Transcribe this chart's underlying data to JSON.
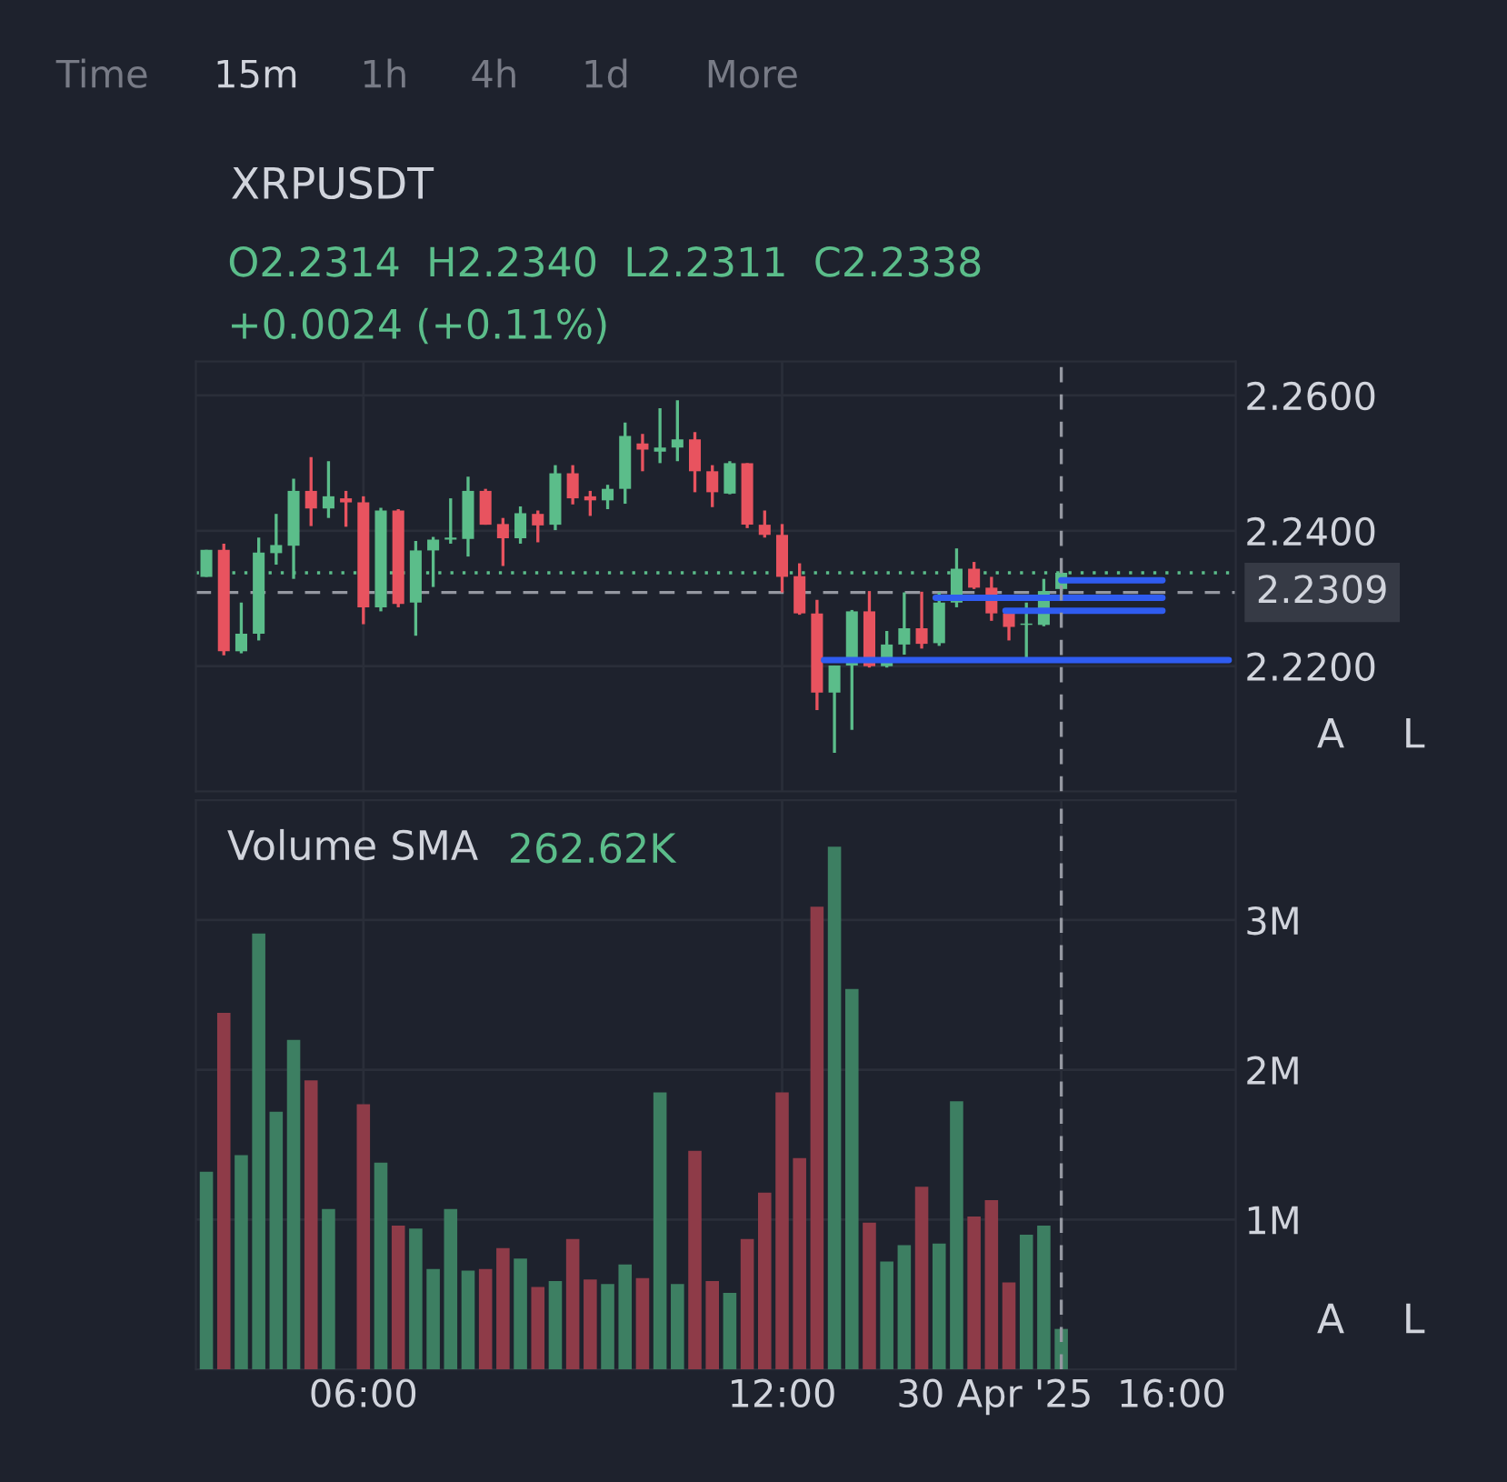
{
  "chart_data": [
    {
      "type": "candlestick",
      "title": "XRPUSDT",
      "x": [
        3.75,
        4,
        4.25,
        4.5,
        4.75,
        5,
        5.25,
        5.5,
        5.75,
        6,
        6.25,
        6.5,
        6.75,
        7,
        7.25,
        7.5,
        7.75,
        8,
        8.25,
        8.5,
        8.75,
        9,
        9.25,
        9.5,
        9.75,
        10,
        10.25,
        10.5,
        10.75,
        11,
        11.25,
        11.5,
        11.75,
        12,
        12.25,
        12.5,
        12.75,
        13,
        13.25,
        13.5,
        13.75,
        14,
        14.25,
        14.5,
        14.75,
        15,
        15.25,
        15.5,
        15.75,
        16
      ],
      "ohlc": [
        [
          2.2332,
          2.2372,
          2.2332,
          2.2372
        ],
        [
          2.2372,
          2.2381,
          2.2216,
          2.2222
        ],
        [
          2.2222,
          2.2294,
          2.2219,
          2.2248
        ],
        [
          2.2248,
          2.239,
          2.2238,
          2.2368
        ],
        [
          2.2367,
          2.2425,
          2.235,
          2.2379
        ],
        [
          2.2378,
          2.2477,
          2.2329,
          2.2459
        ],
        [
          2.2459,
          2.2509,
          2.2407,
          2.2433
        ],
        [
          2.2433,
          2.2503,
          2.2419,
          2.2451
        ],
        [
          2.2448,
          2.2459,
          2.2406,
          2.2442
        ],
        [
          2.2442,
          2.2451,
          2.2262,
          2.2287
        ],
        [
          2.2287,
          2.2434,
          2.2281,
          2.243
        ],
        [
          2.243,
          2.2432,
          2.2287,
          2.2292
        ],
        [
          2.2294,
          2.2385,
          2.2245,
          2.2371
        ],
        [
          2.2371,
          2.2391,
          2.2317,
          2.2387
        ],
        [
          2.2387,
          2.2448,
          2.2381,
          2.239
        ],
        [
          2.2388,
          2.248,
          2.2362,
          2.2459
        ],
        [
          2.2459,
          2.2462,
          2.2409,
          2.2409
        ],
        [
          2.241,
          2.2419,
          2.2348,
          2.2389
        ],
        [
          2.2389,
          2.2436,
          2.2381,
          2.2426
        ],
        [
          2.2425,
          2.243,
          2.2383,
          2.2408
        ],
        [
          2.2409,
          2.2497,
          2.2401,
          2.2485
        ],
        [
          2.2485,
          2.2497,
          2.2439,
          2.2448
        ],
        [
          2.2451,
          2.2459,
          2.2422,
          2.2445
        ],
        [
          2.2445,
          2.2468,
          2.2432,
          2.2462
        ],
        [
          2.2462,
          2.256,
          2.244,
          2.254
        ],
        [
          2.2529,
          2.2543,
          2.2488,
          2.252
        ],
        [
          2.2517,
          2.2581,
          2.25,
          2.2523
        ],
        [
          2.2523,
          2.2593,
          2.2503,
          2.2535
        ],
        [
          2.2535,
          2.2546,
          2.2457,
          2.2488
        ],
        [
          2.2488,
          2.2497,
          2.2435,
          2.2457
        ],
        [
          2.2455,
          2.2503,
          2.2454,
          2.25
        ],
        [
          2.25,
          2.25,
          2.2404,
          2.2409
        ],
        [
          2.2409,
          2.243,
          2.239,
          2.2394
        ],
        [
          2.2394,
          2.241,
          2.2309,
          2.2332
        ],
        [
          2.2333,
          2.2352,
          2.2276,
          2.2278
        ],
        [
          2.2278,
          2.2298,
          2.2135,
          2.2161
        ],
        [
          2.2161,
          2.2201,
          2.2072,
          2.2201
        ],
        [
          2.2201,
          2.2283,
          2.2106,
          2.2281
        ],
        [
          2.2281,
          2.2311,
          2.2198,
          2.22
        ],
        [
          2.22,
          2.2252,
          2.2198,
          2.2232
        ],
        [
          2.2232,
          2.2309,
          2.2217,
          2.2256
        ],
        [
          2.2256,
          2.231,
          2.2226,
          2.2233
        ],
        [
          2.2234,
          2.2309,
          2.223,
          2.2294
        ],
        [
          2.2294,
          2.2374,
          2.2287,
          2.2344
        ],
        [
          2.2344,
          2.2354,
          2.2314,
          2.2316
        ],
        [
          2.2316,
          2.2332,
          2.2267,
          2.2278
        ],
        [
          2.2278,
          2.2284,
          2.2238,
          2.2258
        ],
        [
          2.2261,
          2.2294,
          2.2207,
          2.2263
        ],
        [
          2.2261,
          2.2329,
          2.2259,
          2.2311
        ],
        [
          2.2314,
          2.234,
          2.2311,
          2.2338
        ]
      ],
      "colors": [
        "#5bbd8a",
        "#e8535f",
        "#5bbd8a",
        "#5bbd8a",
        "#5bbd8a",
        "#5bbd8a",
        "#e8535f",
        "#5bbd8a",
        "#e8535f",
        "#e8535f",
        "#5bbd8a",
        "#e8535f",
        "#5bbd8a",
        "#5bbd8a",
        "#5bbd8a",
        "#5bbd8a",
        "#e8535f",
        "#e8535f",
        "#5bbd8a",
        "#e8535f",
        "#5bbd8a",
        "#e8535f",
        "#e8535f",
        "#5bbd8a",
        "#5bbd8a",
        "#e8535f",
        "#5bbd8a",
        "#5bbd8a",
        "#e8535f",
        "#e8535f",
        "#5bbd8a",
        "#e8535f",
        "#e8535f",
        "#e8535f",
        "#e8535f",
        "#e8535f",
        "#5bbd8a",
        "#5bbd8a",
        "#e8535f",
        "#5bbd8a",
        "#5bbd8a",
        "#e8535f",
        "#5bbd8a",
        "#5bbd8a",
        "#e8535f",
        "#e8535f",
        "#e8535f",
        "#5bbd8a",
        "#5bbd8a",
        "#5bbd8a"
      ],
      "series": [
        {
          "type": "line",
          "x": [
            16.0,
            17.45
          ],
          "values": [
            2.2327,
            2.2327
          ],
          "color": "#2f5cf0"
        },
        {
          "type": "line",
          "x": [
            14.2,
            17.45
          ],
          "values": [
            2.2301,
            2.2301
          ],
          "color": "#2f5cf0"
        },
        {
          "type": "line",
          "x": [
            15.2,
            17.45
          ],
          "values": [
            2.2282,
            2.2282
          ],
          "color": "#2f5cf0"
        },
        {
          "type": "line",
          "x": [
            12.6,
            18.4
          ],
          "values": [
            2.2209,
            2.2209
          ],
          "color": "#2f5cf0"
        }
      ],
      "xlim": [
        3.6,
        18.5
      ],
      "ylim": [
        2.2015,
        2.265
      ],
      "xticks": [
        6,
        12
      ],
      "yticks": [
        {
          "value": 2.22,
          "label": "2.2200"
        },
        {
          "value": 2.24,
          "label": "2.2400"
        },
        {
          "value": 2.26,
          "label": "2.2600"
        }
      ],
      "tick_labels": "y",
      "grid": true,
      "ref_lines": [
        {
          "axis": "y",
          "value": 2.2338,
          "color": "#5bbd8a",
          "line_style": "dotted"
        },
        {
          "axis": "y",
          "value": 2.2309,
          "label": "2.2309",
          "color": "#9598a1",
          "line_style": "dashed"
        },
        {
          "axis": "x",
          "value": 16,
          "color": "#9598a1",
          "line_style": "dashed"
        }
      ],
      "annotations": [
        "Time",
        "15m",
        "1h",
        "4h",
        "1d",
        "More",
        "O2.2314  H2.2340  L2.2311  C2.2338",
        "+0.0024 (+0.11%)",
        "A",
        "L"
      ]
    },
    {
      "type": "bar",
      "title": "Volume SMA",
      "x": [
        3.75,
        4,
        4.25,
        4.5,
        4.75,
        5,
        5.25,
        5.5,
        5.75,
        6,
        6.25,
        6.5,
        6.75,
        7,
        7.25,
        7.5,
        7.75,
        8,
        8.25,
        8.5,
        8.75,
        9,
        9.25,
        9.5,
        9.75,
        10,
        10.25,
        10.5,
        10.75,
        11,
        11.25,
        11.5,
        11.75,
        12,
        12.25,
        12.5,
        12.75,
        13,
        13.25,
        13.5,
        13.75,
        14,
        14.25,
        14.5,
        14.75,
        15,
        15.25,
        15.5,
        15.75,
        16
      ],
      "values": [
        1.32,
        2.38,
        1.43,
        2.91,
        1.72,
        2.2,
        1.93,
        1.07,
        null,
        1.77,
        1.38,
        0.96,
        0.94,
        0.67,
        1.07,
        0.66,
        0.67,
        0.81,
        0.74,
        0.55,
        0.59,
        0.87,
        0.6,
        0.57,
        0.7,
        0.61,
        1.85,
        0.57,
        1.46,
        0.59,
        0.51,
        0.87,
        1.18,
        1.85,
        1.41,
        3.09,
        3.49,
        2.54,
        0.98,
        0.72,
        0.83,
        1.22,
        0.84,
        1.79,
        1.02,
        1.13,
        0.58,
        0.9,
        0.96,
        0.27
      ],
      "colors": [
        "#3d7f62",
        "#8e3b48",
        "#3d7f62",
        "#3d7f62",
        "#3d7f62",
        "#3d7f62",
        "#8e3b48",
        "#3d7f62",
        "#8e3b48",
        "#8e3b48",
        "#3d7f62",
        "#8e3b48",
        "#3d7f62",
        "#3d7f62",
        "#3d7f62",
        "#3d7f62",
        "#8e3b48",
        "#8e3b48",
        "#3d7f62",
        "#8e3b48",
        "#3d7f62",
        "#8e3b48",
        "#8e3b48",
        "#3d7f62",
        "#3d7f62",
        "#8e3b48",
        "#3d7f62",
        "#3d7f62",
        "#8e3b48",
        "#8e3b48",
        "#3d7f62",
        "#8e3b48",
        "#8e3b48",
        "#8e3b48",
        "#8e3b48",
        "#8e3b48",
        "#3d7f62",
        "#3d7f62",
        "#8e3b48",
        "#3d7f62",
        "#3d7f62",
        "#8e3b48",
        "#3d7f62",
        "#3d7f62",
        "#8e3b48",
        "#8e3b48",
        "#8e3b48",
        "#3d7f62",
        "#3d7f62",
        "#3d7f62"
      ],
      "xlim": [
        3.6,
        18.5
      ],
      "ylim": [
        0,
        3.8
      ],
      "xticks": [
        {
          "value": 6,
          "label": "06:00"
        },
        {
          "value": 12,
          "label": "12:00"
        },
        {
          "value": 16,
          "label": "30 Apr '25  16:00"
        }
      ],
      "yticks": [
        {
          "value": 1,
          "label": "1M"
        },
        {
          "value": 2,
          "label": "2M"
        },
        {
          "value": 3,
          "label": "3M"
        }
      ],
      "grid": true,
      "ref_lines": [
        {
          "axis": "x",
          "value": 16,
          "color": "#9598a1",
          "line_style": "dashed"
        }
      ],
      "annotations": [
        "262.62K",
        "A",
        "L"
      ]
    }
  ]
}
